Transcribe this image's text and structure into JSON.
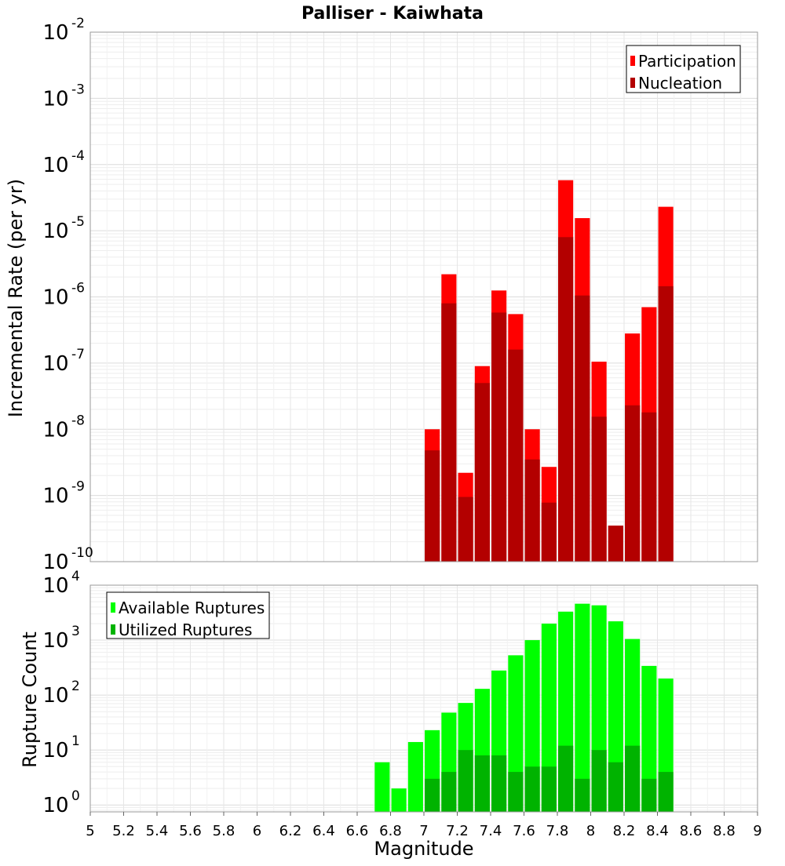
{
  "chart_data": [
    {
      "type": "bar",
      "title": "Palliser - Kaiwhata",
      "xlabel": "",
      "ylabel": "Incremental Rate (per yr)",
      "y_scale": "log",
      "ylim": [
        1e-10,
        0.01
      ],
      "xlim": [
        5,
        9
      ],
      "grid": true,
      "legend_position": "top-right",
      "y_tick_exponents": [
        "-10",
        "-9",
        "-8",
        "-7",
        "-6",
        "-5",
        "-4",
        "-3",
        "-2"
      ],
      "y_tick_base": "10",
      "bar_width": 0.09,
      "x": [
        7.0,
        7.1,
        7.2,
        7.3,
        7.4,
        7.5,
        7.6,
        7.7,
        7.8,
        7.9,
        8.0,
        8.1,
        8.2,
        8.3,
        8.4
      ],
      "series": [
        {
          "name": "Participation",
          "color": "#ff0000",
          "values": [
            1e-08,
            2.2e-06,
            2.2e-09,
            9e-08,
            1.25e-06,
            5.5e-07,
            1e-08,
            2.7e-09,
            5.8e-05,
            1.55e-05,
            1.05e-07,
            3.5e-10,
            2.8e-07,
            7e-07,
            2.3e-05
          ]
        },
        {
          "name": "Nucleation",
          "color": "#b30000",
          "values": [
            4.8e-09,
            8e-07,
            9.5e-10,
            5e-08,
            5.8e-07,
            1.6e-07,
            3.5e-09,
            7.8e-10,
            8e-06,
            1.05e-06,
            1.55e-08,
            3.5e-10,
            2.3e-08,
            1.8e-08,
            1.45e-06
          ]
        }
      ]
    },
    {
      "type": "bar",
      "title": "",
      "xlabel": "Magnitude",
      "ylabel": "Rupture Count",
      "y_scale": "log",
      "ylim": [
        0.75,
        10000
      ],
      "xlim": [
        5,
        9
      ],
      "grid": true,
      "legend_position": "top-left",
      "y_tick_exponents": [
        "0",
        "1",
        "2",
        "3",
        "4"
      ],
      "y_tick_base": "10",
      "x_ticks": [
        "5",
        "5.2",
        "5.4",
        "5.6",
        "5.8",
        "6",
        "6.2",
        "6.4",
        "6.6",
        "6.8",
        "7",
        "7.2",
        "7.4",
        "7.6",
        "7.8",
        "8",
        "8.2",
        "8.4",
        "8.6",
        "8.8",
        "9"
      ],
      "bar_width": 0.09,
      "x": [
        6.7,
        6.8,
        6.9,
        7.0,
        7.1,
        7.2,
        7.3,
        7.4,
        7.5,
        7.6,
        7.7,
        7.8,
        7.9,
        8.0,
        8.1,
        8.2,
        8.3,
        8.4
      ],
      "series": [
        {
          "name": "Available Ruptures",
          "color": "#00ff00",
          "values": [
            6,
            2,
            14,
            23,
            48,
            72,
            130,
            280,
            530,
            1000,
            2000,
            3300,
            4600,
            4300,
            2200,
            1050,
            340,
            200
          ]
        },
        {
          "name": "Utilized Ruptures",
          "color": "#00b300",
          "values": [
            0,
            0,
            0,
            3,
            4,
            10,
            8,
            8,
            4,
            5,
            5,
            12,
            3,
            10,
            6,
            12,
            3,
            4
          ]
        }
      ]
    }
  ]
}
